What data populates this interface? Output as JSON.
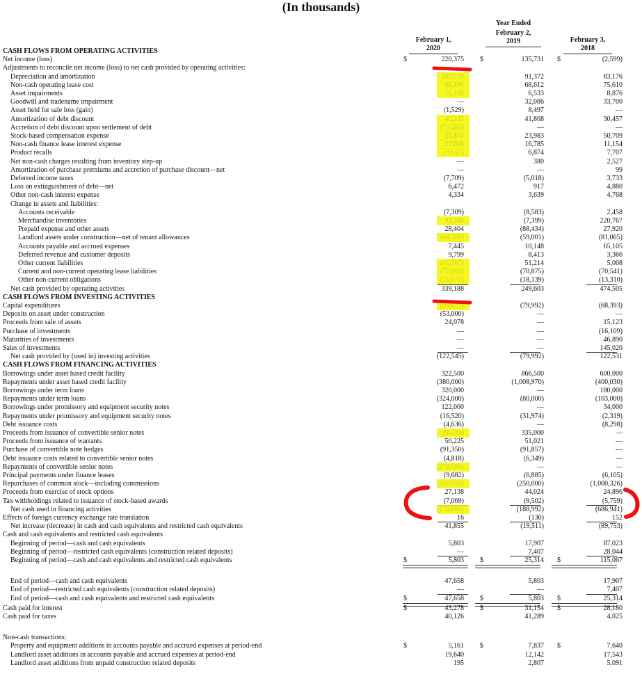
{
  "title": "(In thousands)",
  "columns": [
    {
      "l1": "",
      "l2": "February 1,",
      "l3": "2020"
    },
    {
      "l1": "Year Ended",
      "l2": "February 2,",
      "l3": "2019"
    },
    {
      "l1": "",
      "l2": "February 3,",
      "l3": "2018"
    }
  ],
  "rows": [
    {
      "label": "CASH FLOWS FROM OPERATING ACTIVITIES",
      "indent": 0,
      "header": true,
      "v": [
        "",
        "",
        ""
      ]
    },
    {
      "label": "Net income (loss)",
      "indent": 0,
      "v": [
        "220,375",
        "135,731",
        "(2,599)"
      ],
      "dollar": true
    },
    {
      "label": "Adjustments to reconcile net income (loss) to net cash provided by operating activities:",
      "indent": 0,
      "v": [
        "",
        "",
        ""
      ]
    },
    {
      "label": "Depreciation and amortization",
      "indent": 1,
      "v": [
        "100,739",
        "91,372",
        "83,176"
      ]
    },
    {
      "label": "Non-cash operating lease cost",
      "indent": 1,
      "v": [
        "65,195",
        "68,612",
        "75,610"
      ]
    },
    {
      "label": "Asset impairments",
      "indent": 1,
      "v": [
        "15,168",
        "6,533",
        "8,876"
      ]
    },
    {
      "label": "Goodwill and tradename impairment",
      "indent": 1,
      "v": [
        "—",
        "32,086",
        "33,700"
      ]
    },
    {
      "label": "Asset held for sale loss (gain)",
      "indent": 1,
      "v": [
        "(1,529)",
        "8,497",
        "—"
      ]
    },
    {
      "label": "Amortization of debt discount",
      "indent": 1,
      "v": [
        "46,245",
        "41,868",
        "30,457"
      ]
    },
    {
      "label": "Accretion of debt discount upon settlement of debt",
      "indent": 1,
      "v": [
        "(70,482)",
        "—",
        "—"
      ]
    },
    {
      "label": "Stock-based compensation expense",
      "indent": 1,
      "v": [
        "21,832",
        "23,983",
        "50,709"
      ]
    },
    {
      "label": "Non-cash finance lease interest expense",
      "indent": 1,
      "v": [
        "22,608",
        "16,785",
        "11,154"
      ]
    },
    {
      "label": "Product recalls",
      "indent": 1,
      "v": [
        "(3,517)",
        "6,874",
        "7,707"
      ]
    },
    {
      "label": "Net non-cash charges resulting from inventory step-up",
      "indent": 1,
      "v": [
        "—",
        "380",
        "2,527"
      ]
    },
    {
      "label": "Amortization of purchase premiums and accretion of purchase discount—net",
      "indent": 1,
      "v": [
        "—",
        "—",
        "99"
      ]
    },
    {
      "label": "Deferred income taxes",
      "indent": 1,
      "v": [
        "(7,709)",
        "(5,018)",
        "3,733"
      ]
    },
    {
      "label": "Loss on extinguishment of debt—net",
      "indent": 1,
      "v": [
        "6,472",
        "917",
        "4,880"
      ]
    },
    {
      "label": "Other non-cash interest expense",
      "indent": 1,
      "v": [
        "4,334",
        "3,639",
        "4,768"
      ]
    },
    {
      "label": "Change in assets and liabilities:",
      "indent": 1,
      "v": [
        "",
        "",
        ""
      ]
    },
    {
      "label": "Accounts receivable",
      "indent": 2,
      "v": [
        "(7,309)",
        "(8,583)",
        "2,458"
      ]
    },
    {
      "label": "Merchandise inventories",
      "indent": 2,
      "v": [
        "93,266",
        "(7,399)",
        "220,767"
      ]
    },
    {
      "label": "Prepaid expense and other assets",
      "indent": 2,
      "v": [
        "28,404",
        "(88,434)",
        "27,920"
      ]
    },
    {
      "label": "Landlord assets under construction—net of tenant allowances",
      "indent": 2,
      "v": [
        "(64,300)",
        "(59,001)",
        "(81,065)"
      ]
    },
    {
      "label": "Accounts payable and accrued expenses",
      "indent": 2,
      "v": [
        "7,445",
        "10,148",
        "65,105"
      ]
    },
    {
      "label": "Deferred revenue and customer deposits",
      "indent": 2,
      "v": [
        "9,799",
        "8,413",
        "3,366"
      ]
    },
    {
      "label": "Other current liabilities",
      "indent": 2,
      "v": [
        "(45,767)",
        "51,214",
        "5,008"
      ]
    },
    {
      "label": "Current and non-current operating lease liabilities",
      "indent": 2,
      "v": [
        "(77,004)",
        "(70,875)",
        "(70,541)"
      ]
    },
    {
      "label": "Other non-current obligations",
      "indent": 2,
      "v": [
        "(25,077)",
        "(18,139)",
        "(13,310)"
      ]
    },
    {
      "label": "Net cash provided by operating activities",
      "indent": 1,
      "v": [
        "339,188",
        "249,603",
        "474,505"
      ],
      "total": true
    },
    {
      "label": "CASH FLOWS FROM INVESTING ACTIVITIES",
      "indent": 0,
      "header": true,
      "v": [
        "",
        "",
        ""
      ]
    },
    {
      "label": "Capital expenditures",
      "indent": 0,
      "v": [
        "(93,623)",
        "(79,992)",
        "(68,393)"
      ]
    },
    {
      "label": "Deposits on asset under construction",
      "indent": 0,
      "v": [
        "(53,000)",
        "—",
        "—"
      ]
    },
    {
      "label": "Proceeds from sale of assets",
      "indent": 0,
      "v": [
        "24,078",
        "—",
        "15,123"
      ]
    },
    {
      "label": "Purchase of investments",
      "indent": 0,
      "v": [
        "—",
        "—",
        "(16,109)"
      ]
    },
    {
      "label": "Maturities of investments",
      "indent": 0,
      "v": [
        "—",
        "—",
        "46,890"
      ]
    },
    {
      "label": "Sales of investments",
      "indent": 0,
      "v": [
        "—",
        "—",
        "145,020"
      ]
    },
    {
      "label": "Net cash provided by (used in) investing activities",
      "indent": 1,
      "v": [
        "(122,545)",
        "(79,992)",
        "122,531"
      ],
      "total": true
    },
    {
      "label": "CASH FLOWS FROM FINANCING ACTIVITIES",
      "indent": 0,
      "header": true,
      "v": [
        "",
        "",
        ""
      ]
    },
    {
      "label": "Borrowings under asset based credit facility",
      "indent": 0,
      "v": [
        "322,500",
        "866,500",
        "600,000"
      ]
    },
    {
      "label": "Repayments under asset based credit facility",
      "indent": 0,
      "v": [
        "(380,000)",
        "(1,008,970)",
        "(400,030)"
      ]
    },
    {
      "label": "Borrowings under term loans",
      "indent": 0,
      "v": [
        "320,000",
        "—",
        "180,000"
      ]
    },
    {
      "label": "Repayments under term loans",
      "indent": 0,
      "v": [
        "(324,000)",
        "(80,000)",
        "(103,000)"
      ]
    },
    {
      "label": "Borrowings under promissory and equipment security notes",
      "indent": 0,
      "v": [
        "122,000",
        "—",
        "34,000"
      ]
    },
    {
      "label": "Repayments under promissory and equipment security notes",
      "indent": 0,
      "v": [
        "(16,520)",
        "(31,974)",
        "(2,319)"
      ]
    },
    {
      "label": "Debt issuance costs",
      "indent": 0,
      "v": [
        "(4,636)",
        "—",
        "(8,298)"
      ]
    },
    {
      "label": "Proceeds from issuance of convertible senior notes",
      "indent": 0,
      "v": [
        "350,000",
        "335,000",
        "—"
      ]
    },
    {
      "label": "Proceeds from issuance of warrants",
      "indent": 0,
      "v": [
        "50,225",
        "51,021",
        "—"
      ]
    },
    {
      "label": "Purchase of convertible note hedges",
      "indent": 0,
      "v": [
        "(91,350)",
        "(91,857)",
        "—"
      ]
    },
    {
      "label": "Debt issuance costs related to convertible senior notes",
      "indent": 0,
      "v": [
        "(4,818)",
        "(6,349)",
        "—"
      ]
    },
    {
      "label": "Repayments of convertible senior notes",
      "indent": 0,
      "v": [
        "(278,560)",
        "—",
        "—"
      ]
    },
    {
      "label": "Principal payments under finance leases",
      "indent": 0,
      "v": [
        "(9,682)",
        "(6,885)",
        "(6,105)"
      ]
    },
    {
      "label": "Repurchases of common stock—including commissions",
      "indent": 0,
      "v": [
        "(250,032)",
        "(250,000)",
        "(1,000,326)"
      ]
    },
    {
      "label": "Proceeds from exercise of stock options",
      "indent": 0,
      "v": [
        "27,138",
        "44,024",
        "24,896"
      ]
    },
    {
      "label": "Tax withholdings related to issuance of stock-based awards",
      "indent": 0,
      "v": [
        "(7,069)",
        "(9,502)",
        "(5,759)"
      ]
    },
    {
      "label": "Net cash used in financing activities",
      "indent": 1,
      "v": [
        "(174,804)",
        "(188,992)",
        "(686,941)"
      ],
      "total": true
    },
    {
      "label": "Effects of foreign currency exchange rate translation",
      "indent": 0,
      "v": [
        "16",
        "(130)",
        "152"
      ]
    },
    {
      "label": "Net increase (decrease) in cash and cash equivalents and restricted cash equivalents",
      "indent": 1,
      "v": [
        "41,855",
        "(19,511)",
        "(89,753)"
      ],
      "total": true
    },
    {
      "label": "Cash and cash equivalents and restricted cash equivalents",
      "indent": 0,
      "v": [
        "",
        "",
        ""
      ]
    },
    {
      "label": "Beginning of period—cash and cash equivalents",
      "indent": 1,
      "v": [
        "5,803",
        "17,907",
        "87,023"
      ]
    },
    {
      "label": "Beginning of period—restricted cash equivalents (construction related deposits)",
      "indent": 1,
      "v": [
        "—",
        "7,407",
        "28,044"
      ]
    },
    {
      "label": "Beginning of period—cash and cash equivalents and restricted cash equivalents",
      "indent": 1,
      "v": [
        "5,803",
        "25,314",
        "115,067"
      ],
      "dollar": true,
      "total": true,
      "dbl": true
    },
    {
      "label": "End of period—cash and cash equivalents",
      "indent": 1,
      "v": [
        "47,658",
        "5,803",
        "17,907"
      ]
    },
    {
      "label": "End of period—restricted cash equivalents (construction related deposits)",
      "indent": 1,
      "v": [
        "—",
        "—",
        "7,407"
      ]
    },
    {
      "label": "End of period—cash and cash equivalents and restricted cash equivalents",
      "indent": 1,
      "v": [
        "47,658",
        "5,803",
        "25,314"
      ],
      "dollar": true,
      "total": true,
      "dbl": true
    },
    {
      "label": "Cash paid for interest",
      "indent": 0,
      "v": [
        "43,278",
        "31,154",
        "28,180"
      ],
      "dollar": true
    },
    {
      "label": "Cash paid for taxes",
      "indent": 0,
      "v": [
        "40,126",
        "41,289",
        "4,025"
      ]
    },
    {
      "label": "Non-cash transactions:",
      "indent": 0,
      "v": [
        "",
        "",
        ""
      ]
    },
    {
      "label": "Property and equipment additions in accounts payable and accrued expenses at period-end",
      "indent": 1,
      "v": [
        "5,161",
        "7,837",
        "7,640"
      ],
      "dollar": true
    },
    {
      "label": "Landlord asset additions in accounts payable and accrued expenses at period-end",
      "indent": 1,
      "v": [
        "19,640",
        "12,142",
        "17,543"
      ]
    },
    {
      "label": "Landlord asset additions from unpaid construction related deposits",
      "indent": 1,
      "v": [
        "195",
        "2,807",
        "5,091"
      ]
    }
  ]
}
